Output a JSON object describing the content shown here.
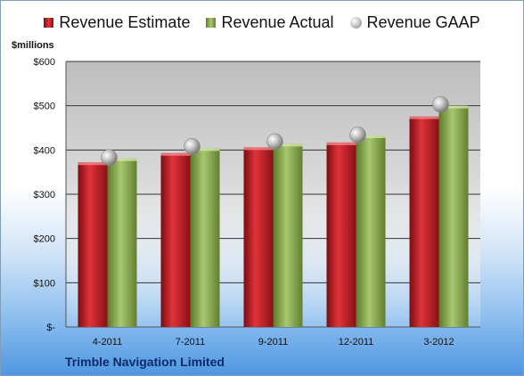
{
  "chart_data": {
    "type": "bar",
    "title": "Trimble Navigation Limited",
    "ylabel": "$millions",
    "categories": [
      "4-2011",
      "7-2011",
      "9-2011",
      "12-2011",
      "3-2012"
    ],
    "series": [
      {
        "name": "Revenue Estimate",
        "type": "bar",
        "color": "#c81e24",
        "values": [
          372,
          393,
          406,
          417,
          476
        ]
      },
      {
        "name": "Revenue Actual",
        "type": "bar",
        "color": "#8fae52",
        "values": [
          381,
          404,
          414,
          433,
          500
        ]
      },
      {
        "name": "Revenue GAAP",
        "type": "scatter",
        "color": "#a8a8a8",
        "values": [
          383,
          408,
          419,
          434,
          503
        ]
      }
    ],
    "ylim": [
      0,
      600
    ],
    "yticks": [
      0,
      100,
      200,
      300,
      400,
      500,
      600
    ],
    "ytick_labels": [
      "$-",
      "$100",
      "$200",
      "$300",
      "$400",
      "$500",
      "$600"
    ],
    "grid": true,
    "legend_position": "top"
  }
}
